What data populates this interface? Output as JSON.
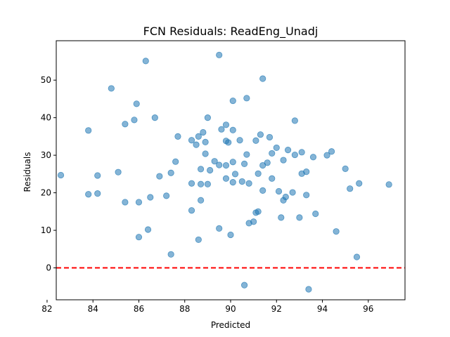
{
  "chart_data": {
    "type": "scatter",
    "title": "FCN Residuals: ReadEng_Unadj",
    "xlabel": "Predicted",
    "ylabel": "Residuals",
    "xlim": [
      82.4,
      97.6
    ],
    "ylim": [
      -8.5,
      60.5
    ],
    "xticks": [
      82,
      84,
      86,
      88,
      90,
      92,
      94,
      96
    ],
    "yticks": [
      0,
      10,
      20,
      30,
      40,
      50
    ],
    "grid": false,
    "point_color": "#1f77b4",
    "reference_line": {
      "y": 0,
      "color": "#ff0000",
      "style": "dashed"
    },
    "points": [
      [
        82.6,
        24.7
      ],
      [
        83.8,
        36.6
      ],
      [
        83.8,
        19.6
      ],
      [
        84.2,
        24.6
      ],
      [
        84.2,
        19.8
      ],
      [
        84.8,
        47.8
      ],
      [
        85.1,
        25.5
      ],
      [
        85.4,
        38.3
      ],
      [
        85.4,
        17.5
      ],
      [
        85.8,
        39.4
      ],
      [
        85.9,
        43.7
      ],
      [
        86.0,
        17.5
      ],
      [
        86.0,
        8.2
      ],
      [
        86.3,
        55.1
      ],
      [
        86.4,
        10.2
      ],
      [
        86.5,
        18.8
      ],
      [
        86.7,
        40.0
      ],
      [
        86.9,
        24.4
      ],
      [
        87.2,
        19.2
      ],
      [
        87.4,
        25.3
      ],
      [
        87.4,
        3.6
      ],
      [
        87.6,
        28.3
      ],
      [
        87.7,
        35.0
      ],
      [
        88.3,
        34.0
      ],
      [
        88.3,
        22.5
      ],
      [
        88.3,
        15.3
      ],
      [
        88.5,
        32.8
      ],
      [
        88.6,
        35.0
      ],
      [
        88.6,
        7.5
      ],
      [
        88.7,
        26.3
      ],
      [
        88.7,
        22.3
      ],
      [
        88.7,
        18.0
      ],
      [
        88.8,
        36.1
      ],
      [
        88.9,
        33.5
      ],
      [
        88.9,
        30.4
      ],
      [
        89.0,
        40.0
      ],
      [
        89.0,
        22.3
      ],
      [
        89.1,
        26.0
      ],
      [
        89.3,
        28.4
      ],
      [
        89.5,
        56.7
      ],
      [
        89.5,
        27.4
      ],
      [
        89.5,
        10.5
      ],
      [
        89.6,
        36.9
      ],
      [
        89.8,
        38.1
      ],
      [
        89.8,
        33.8
      ],
      [
        89.8,
        27.3
      ],
      [
        89.8,
        23.8
      ],
      [
        89.9,
        33.4
      ],
      [
        90.0,
        8.8
      ],
      [
        90.1,
        44.5
      ],
      [
        90.1,
        36.7
      ],
      [
        90.1,
        28.2
      ],
      [
        90.1,
        22.8
      ],
      [
        90.2,
        25.0
      ],
      [
        90.4,
        34.0
      ],
      [
        90.5,
        23.0
      ],
      [
        90.6,
        27.7
      ],
      [
        90.6,
        -4.6
      ],
      [
        90.7,
        45.2
      ],
      [
        90.7,
        30.2
      ],
      [
        90.8,
        22.5
      ],
      [
        90.8,
        11.9
      ],
      [
        91.0,
        12.3
      ],
      [
        91.1,
        33.9
      ],
      [
        91.1,
        14.7
      ],
      [
        91.2,
        15.0
      ],
      [
        91.2,
        25.1
      ],
      [
        91.3,
        35.5
      ],
      [
        91.4,
        50.4
      ],
      [
        91.4,
        27.3
      ],
      [
        91.4,
        20.6
      ],
      [
        91.6,
        28.0
      ],
      [
        91.7,
        34.8
      ],
      [
        91.8,
        30.5
      ],
      [
        91.8,
        23.8
      ],
      [
        92.0,
        32.0
      ],
      [
        92.1,
        20.4
      ],
      [
        92.2,
        13.4
      ],
      [
        92.3,
        28.7
      ],
      [
        92.3,
        18.0
      ],
      [
        92.4,
        18.9
      ],
      [
        92.5,
        31.4
      ],
      [
        92.7,
        20.1
      ],
      [
        92.8,
        39.2
      ],
      [
        92.8,
        30.1
      ],
      [
        93.0,
        13.4
      ],
      [
        93.1,
        30.8
      ],
      [
        93.1,
        25.1
      ],
      [
        93.3,
        25.6
      ],
      [
        93.3,
        19.4
      ],
      [
        93.4,
        -5.7
      ],
      [
        93.6,
        29.5
      ],
      [
        93.7,
        14.4
      ],
      [
        94.2,
        30.0
      ],
      [
        94.4,
        31.0
      ],
      [
        94.6,
        9.7
      ],
      [
        95.0,
        26.4
      ],
      [
        95.2,
        21.1
      ],
      [
        95.5,
        2.9
      ],
      [
        95.6,
        22.5
      ],
      [
        96.9,
        22.2
      ]
    ]
  }
}
